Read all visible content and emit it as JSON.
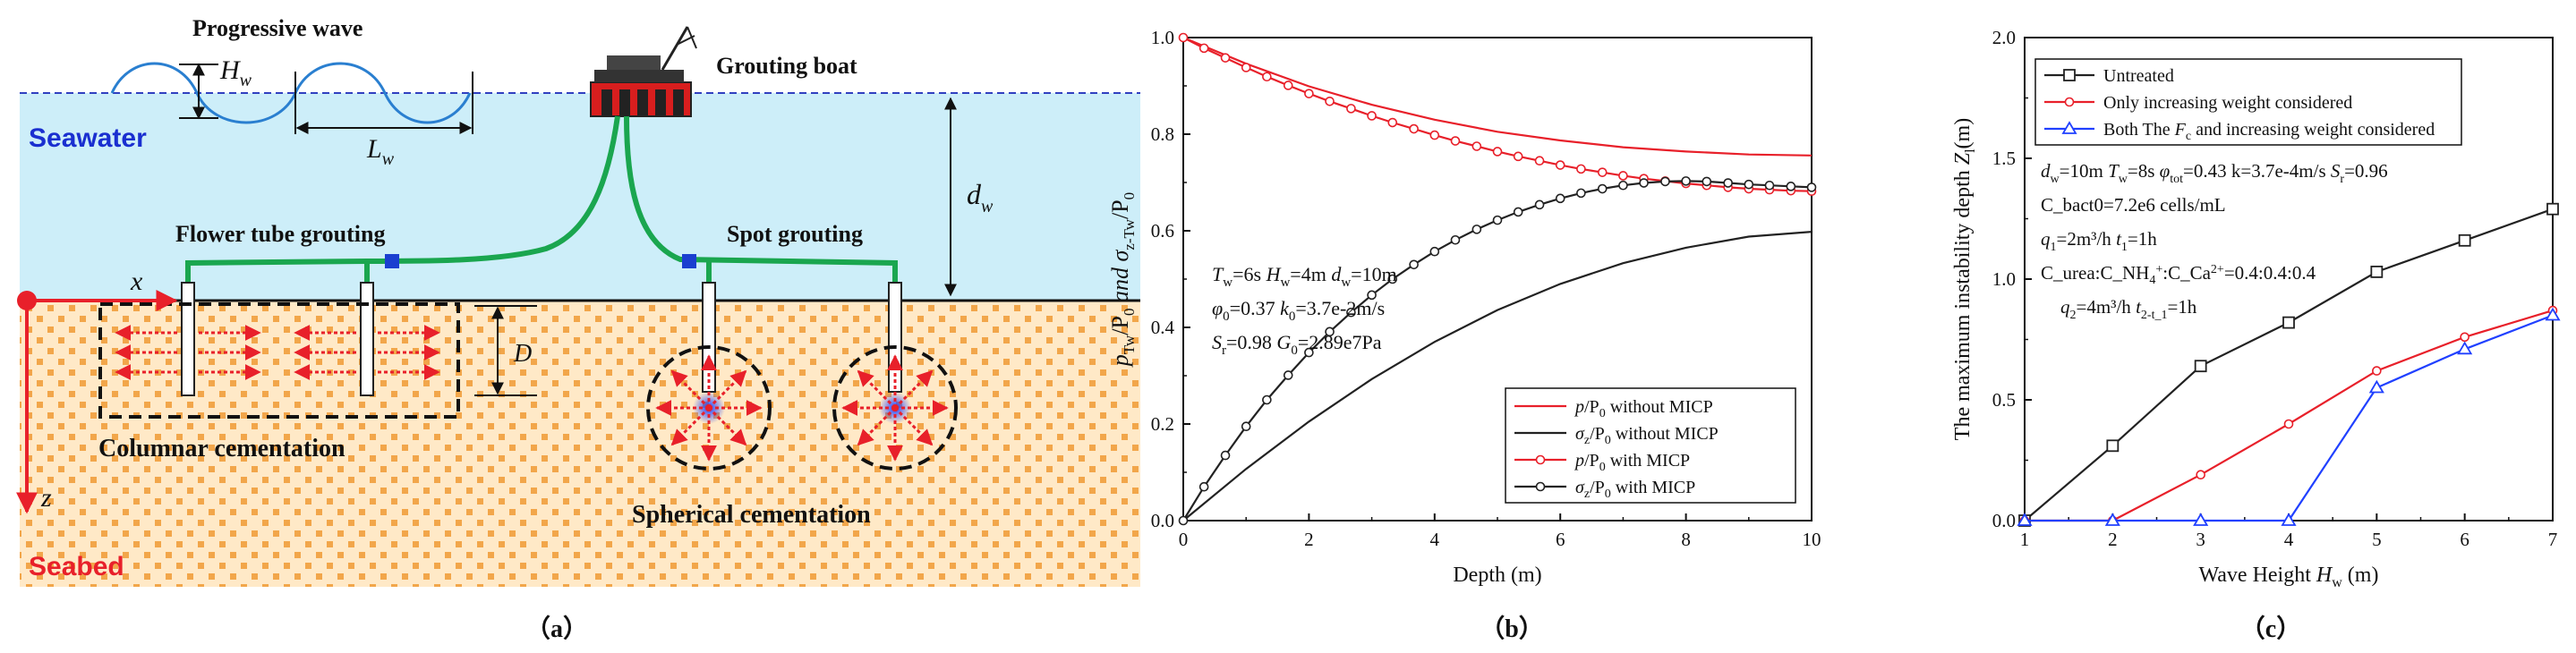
{
  "colors": {
    "seawater_fill": "#cdeef9",
    "seabed_fill": "#ffe9c7",
    "seabed_dot": "#f2a64a",
    "pipe_green": "#1aa64f",
    "red": "#e8202a",
    "blue": "#2040ff",
    "dark": "#222222"
  },
  "panel_a": {
    "caption": "（a）",
    "wave_title": "Progressive wave",
    "hw_label": "H",
    "hw_sub": "w",
    "lw_label": "L",
    "lw_sub": "w",
    "dw_label": "d",
    "dw_sub": "w",
    "boat_label": "Grouting boat",
    "seawater_label": "Seawater",
    "seabed_label": "Seabed",
    "flower_label": "Flower tube grouting",
    "spot_label": "Spot grouting",
    "columnar_label": "Columnar  cementation",
    "spherical_label": "Spherical  cementation",
    "x_label": "x",
    "z_label": "z",
    "d_label": "D"
  },
  "chart_data": [
    {
      "id": "b",
      "caption": "（b）",
      "type": "line",
      "xlabel": "Depth (m)",
      "ylabel_parts": [
        "p",
        "Tw",
        "/P",
        "0",
        " and σ",
        "z-Tw",
        "/P",
        "0"
      ],
      "xlim": [
        0,
        10
      ],
      "ylim": [
        0,
        1.0
      ],
      "xticks": [
        0,
        2,
        4,
        6,
        8,
        10
      ],
      "xtick_labels": [
        "0",
        "2",
        "4",
        "6",
        "8",
        "10"
      ],
      "yticks": [
        0,
        0.2,
        0.4,
        0.6,
        0.8,
        1.0
      ],
      "ytick_labels": [
        "0.0",
        "0.2",
        "0.4",
        "0.6",
        "0.8",
        "1.0"
      ],
      "annotations": [
        "T_w=6s  H_w=4m  d_w=10m",
        "φ_0=0.37  k_0=3.7e-2m/s",
        "S_r=0.98  G_0=2.89e7Pa"
      ],
      "legend_position": "bottom-right",
      "series": [
        {
          "name": "p/P0 without MICP",
          "color": "#e8202a",
          "marker": "none",
          "x": [
            0,
            1,
            2,
            3,
            4,
            5,
            6,
            7,
            8,
            9,
            10
          ],
          "y": [
            1.0,
            0.946,
            0.899,
            0.861,
            0.83,
            0.805,
            0.787,
            0.773,
            0.764,
            0.758,
            0.756
          ]
        },
        {
          "name": "σz/P0 without MICP",
          "color": "#222222",
          "marker": "none",
          "x": [
            0,
            1,
            2,
            3,
            4,
            5,
            6,
            7,
            8,
            9,
            10
          ],
          "y": [
            0.0,
            0.107,
            0.205,
            0.293,
            0.37,
            0.436,
            0.49,
            0.533,
            0.565,
            0.588,
            0.598
          ]
        },
        {
          "name": "p/P0 with MICP",
          "color": "#e8202a",
          "marker": "circle",
          "x": [
            0,
            0.33,
            0.67,
            1.0,
            1.33,
            1.67,
            2.0,
            2.33,
            2.67,
            3.0,
            3.33,
            3.67,
            4.0,
            4.33,
            4.67,
            5.0,
            5.33,
            5.67,
            6.0,
            6.33,
            6.67,
            7.0,
            7.33,
            7.67,
            8.0,
            8.33,
            8.67,
            9.0,
            9.33,
            9.67,
            10.0
          ],
          "y": [
            1.0,
            0.978,
            0.958,
            0.938,
            0.919,
            0.901,
            0.884,
            0.868,
            0.853,
            0.838,
            0.824,
            0.811,
            0.798,
            0.786,
            0.775,
            0.764,
            0.754,
            0.745,
            0.736,
            0.728,
            0.721,
            0.714,
            0.708,
            0.703,
            0.698,
            0.694,
            0.69,
            0.687,
            0.685,
            0.683,
            0.682
          ]
        },
        {
          "name": "σz/P0 with MICP",
          "color": "#222222",
          "marker": "circle",
          "x": [
            0,
            0.33,
            0.67,
            1.0,
            1.33,
            1.67,
            2.0,
            2.33,
            2.67,
            3.0,
            3.33,
            3.67,
            4.0,
            4.33,
            4.67,
            5.0,
            5.33,
            5.67,
            6.0,
            6.33,
            6.67,
            7.0,
            7.33,
            7.67,
            8.0,
            8.33,
            8.67,
            9.0,
            9.33,
            9.67,
            10.0
          ],
          "y": [
            0.0,
            0.07,
            0.135,
            0.195,
            0.25,
            0.301,
            0.348,
            0.391,
            0.431,
            0.467,
            0.5,
            0.53,
            0.557,
            0.581,
            0.603,
            0.622,
            0.639,
            0.654,
            0.667,
            0.678,
            0.687,
            0.694,
            0.699,
            0.702,
            0.703,
            0.702,
            0.699,
            0.696,
            0.694,
            0.692,
            0.69
          ]
        }
      ]
    },
    {
      "id": "c",
      "caption": "（c）",
      "type": "line",
      "xlabel_parts": [
        "Wave Height ",
        "H",
        "w",
        " (m)"
      ],
      "ylabel_parts": [
        "The maximum instability depth ",
        "Z",
        "l",
        "(m)"
      ],
      "xlim": [
        1,
        7
      ],
      "ylim": [
        0,
        2.0
      ],
      "xticks": [
        1,
        2,
        3,
        4,
        5,
        6,
        7
      ],
      "xtick_labels": [
        "1",
        "2",
        "3",
        "4",
        "5",
        "6",
        "7"
      ],
      "yticks": [
        0,
        0.5,
        1.0,
        1.5,
        2.0
      ],
      "ytick_labels": [
        "0.0",
        "0.5",
        "1.0",
        "1.5",
        "2.0"
      ],
      "annotations": [
        "d_w=10m  T_w=8s  φ_tot=0.43  k=3.7e-4m/s  S_r=0.96",
        "C_bact0=7.2e6 cells/mL",
        "q_1=2m³/h  t_1=1h",
        "C_urea:C_NH4+:C_Ca2+=0.4:0.4:0.4",
        "q_2=4m³/h  t_2-t_1=1h"
      ],
      "legend_position": "top-left",
      "series": [
        {
          "name": "Untreated",
          "color": "#222222",
          "marker": "square",
          "x": [
            1,
            2,
            3,
            4,
            5,
            6,
            7
          ],
          "y": [
            0.0,
            0.31,
            0.64,
            0.82,
            1.03,
            1.16,
            1.29
          ]
        },
        {
          "name": "Only increasing weight considered",
          "color": "#e8202a",
          "marker": "circle",
          "x": [
            1,
            2,
            3,
            4,
            5,
            6,
            7
          ],
          "y": [
            0.0,
            0.0,
            0.19,
            0.4,
            0.62,
            0.76,
            0.87
          ]
        },
        {
          "name": "Both The Fc and increasing weight considered",
          "color": "#2040ff",
          "marker": "triangle",
          "x": [
            1,
            2,
            3,
            4,
            5,
            6,
            7
          ],
          "y": [
            0.0,
            0.0,
            0.0,
            0.0,
            0.55,
            0.71,
            0.85
          ]
        }
      ]
    }
  ]
}
